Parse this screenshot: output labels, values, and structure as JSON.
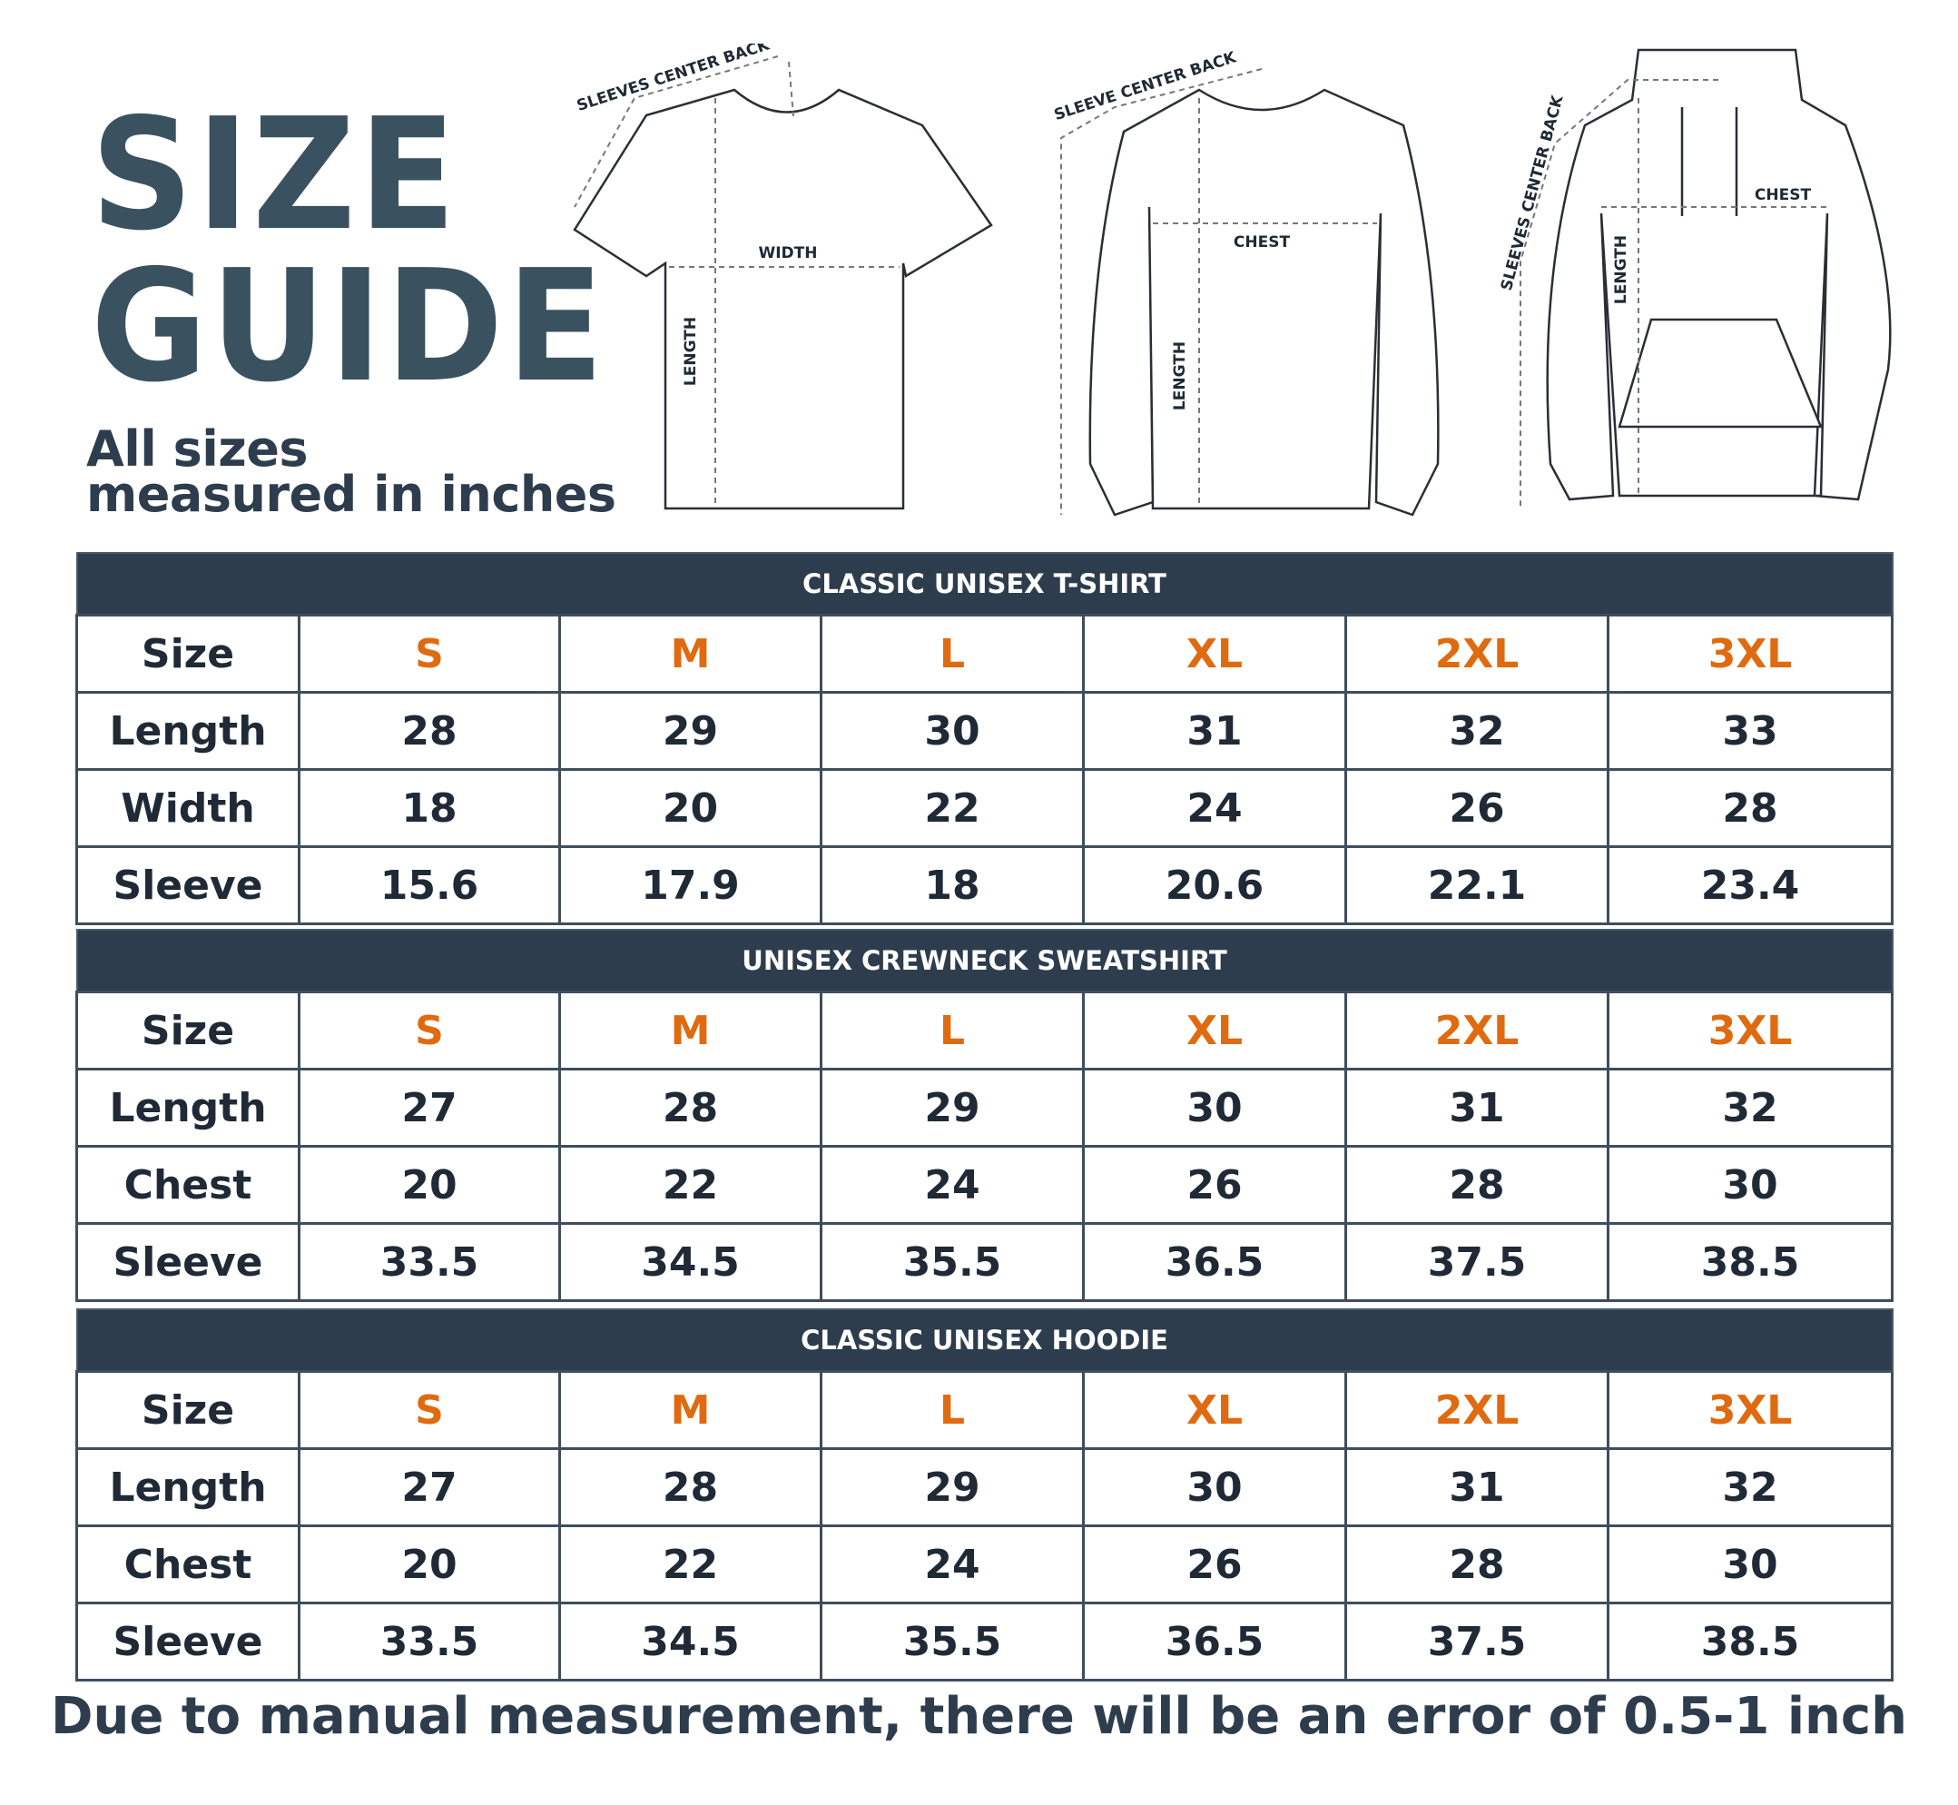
{
  "header": {
    "title_line1": "SIZE",
    "title_line2": "GUIDE",
    "subtitle_line1": "All sizes",
    "subtitle_line2": "measured in inches"
  },
  "illustrations": {
    "tshirt": {
      "sleeve": "SLEEVES CENTER BACK",
      "width": "WIDTH",
      "length": "LENGTH"
    },
    "sweatshirt": {
      "sleeve": "SLEEVE CENTER BACK",
      "chest": "CHEST",
      "length": "LENGTH"
    },
    "hoodie": {
      "sleeve": "SLEEVES CENTER BACK",
      "chest": "CHEST",
      "length": "LENGTH"
    }
  },
  "colors": {
    "title": "#3a5160",
    "header_bar": "#2e3d4d",
    "size_accent": "#e06a10",
    "text": "#1f2a36"
  },
  "tables": [
    {
      "title": "CLASSIC UNISEX T-SHIRT",
      "size_label": "Size",
      "sizes": [
        "S",
        "M",
        "L",
        "XL",
        "2XL",
        "3XL"
      ],
      "rows": [
        {
          "label": "Length",
          "values": [
            "28",
            "29",
            "30",
            "31",
            "32",
            "33"
          ]
        },
        {
          "label": "Width",
          "values": [
            "18",
            "20",
            "22",
            "24",
            "26",
            "28"
          ]
        },
        {
          "label": "Sleeve",
          "values": [
            "15.6",
            "17.9",
            "18",
            "20.6",
            "22.1",
            "23.4"
          ]
        }
      ]
    },
    {
      "title": "UNISEX CREWNECK SWEATSHIRT",
      "size_label": "Size",
      "sizes": [
        "S",
        "M",
        "L",
        "XL",
        "2XL",
        "3XL"
      ],
      "rows": [
        {
          "label": "Length",
          "values": [
            "27",
            "28",
            "29",
            "30",
            "31",
            "32"
          ]
        },
        {
          "label": "Chest",
          "values": [
            "20",
            "22",
            "24",
            "26",
            "28",
            "30"
          ]
        },
        {
          "label": "Sleeve",
          "values": [
            "33.5",
            "34.5",
            "35.5",
            "36.5",
            "37.5",
            "38.5"
          ]
        }
      ]
    },
    {
      "title": "CLASSIC UNISEX HOODIE",
      "size_label": "Size",
      "sizes": [
        "S",
        "M",
        "L",
        "XL",
        "2XL",
        "3XL"
      ],
      "rows": [
        {
          "label": "Length",
          "values": [
            "27",
            "28",
            "29",
            "30",
            "31",
            "32"
          ]
        },
        {
          "label": "Chest",
          "values": [
            "20",
            "22",
            "24",
            "26",
            "28",
            "30"
          ]
        },
        {
          "label": "Sleeve",
          "values": [
            "33.5",
            "34.5",
            "35.5",
            "36.5",
            "37.5",
            "38.5"
          ]
        }
      ]
    }
  ],
  "footer": "Due to manual measurement, there will be an error of 0.5-1 inch"
}
